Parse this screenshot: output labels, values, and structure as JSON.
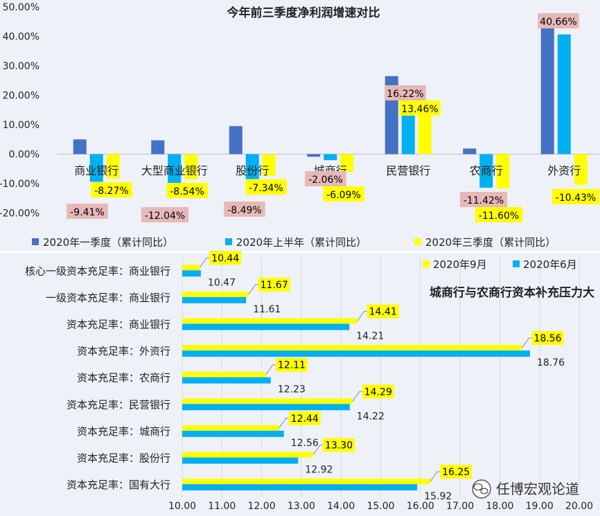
{
  "colors": {
    "q1": "#4472c4",
    "h1": "#00b0f0",
    "q3": "#ffff00",
    "neg_label_bg": "#e6b9b8",
    "panel_bg": "#eef1f8",
    "grid": "#d9d9d9",
    "leader": "#8c8c8c"
  },
  "chart_data": [
    {
      "type": "bar",
      "title": "今年前三季度净利润增速对比",
      "categories": [
        "商业银行",
        "大型商业银行",
        "股份行",
        "城商行",
        "民营银行",
        "农商行",
        "外资行"
      ],
      "series": [
        {
          "name": "2020年一季度（累计同比）",
          "values": [
            5.0,
            4.7,
            9.5,
            -0.9,
            26.5,
            1.9,
            43.5
          ]
        },
        {
          "name": "2020年上半年（累计同比）",
          "values": [
            -9.41,
            -12.04,
            -8.49,
            -2.06,
            16.22,
            -11.42,
            40.66
          ]
        },
        {
          "name": "2020年三季度（累计同比）",
          "values": [
            -8.27,
            -8.54,
            -7.34,
            -6.09,
            13.46,
            -11.6,
            -10.43
          ]
        }
      ],
      "data_labels": {
        "h1": [
          "-9.41%",
          "-12.04%",
          "-8.49%",
          "-2.06%",
          "16.22%",
          "-11.42%",
          "40.66%"
        ],
        "q3": [
          "-8.27%",
          "-8.54%",
          "-7.34%",
          "-6.09%",
          "13.46%",
          "-11.60%",
          "-10.43%"
        ]
      },
      "yticks": [
        "50.00%",
        "40.00%",
        "30.00%",
        "20.00%",
        "10.00%",
        "0.00%",
        "-10.00%",
        "-20.00%"
      ],
      "ylim": [
        -20,
        50
      ],
      "legend_position": "bottom",
      "grid": false
    },
    {
      "type": "bar",
      "orientation": "horizontal",
      "title": "城商行与农商行资本补充压力大",
      "categories": [
        "核心一级资本充足率：商业银行",
        "一级资本充足率：商业银行",
        "资本充足率：商业银行",
        "资本充足率：外资行",
        "资本充足率：农商行",
        "资本充足率：民营银行",
        "资本充足率：城商行",
        "资本充足率：股份行",
        "资本充足率：国有大行"
      ],
      "series": [
        {
          "name": "2020年9月",
          "values": [
            10.44,
            11.67,
            14.41,
            18.56,
            12.11,
            14.29,
            12.44,
            13.3,
            16.25
          ]
        },
        {
          "name": "2020年6月",
          "values": [
            10.47,
            11.61,
            14.21,
            18.76,
            12.23,
            14.22,
            12.56,
            12.92,
            15.92
          ]
        }
      ],
      "data_labels": {
        "sep": [
          "10.44",
          "11.67",
          "14.41",
          "18.56",
          "12.11",
          "14.29",
          "12.44",
          "13.30",
          "16.25"
        ],
        "jun": [
          "10.47",
          "11.61",
          "14.21",
          "18.76",
          "12.23",
          "14.22",
          "12.56",
          "12.92",
          "15.92"
        ]
      },
      "xticks": [
        "10.00",
        "11.00",
        "12.00",
        "13.00",
        "14.00",
        "15.00",
        "16.00",
        "17.00",
        "18.00",
        "19.00",
        "20.00"
      ],
      "xlim": [
        10,
        20
      ],
      "legend_position": "top-right",
      "grid": true
    }
  ],
  "watermark": {
    "icon": "wechat-icon",
    "text": "任博宏观论道"
  }
}
